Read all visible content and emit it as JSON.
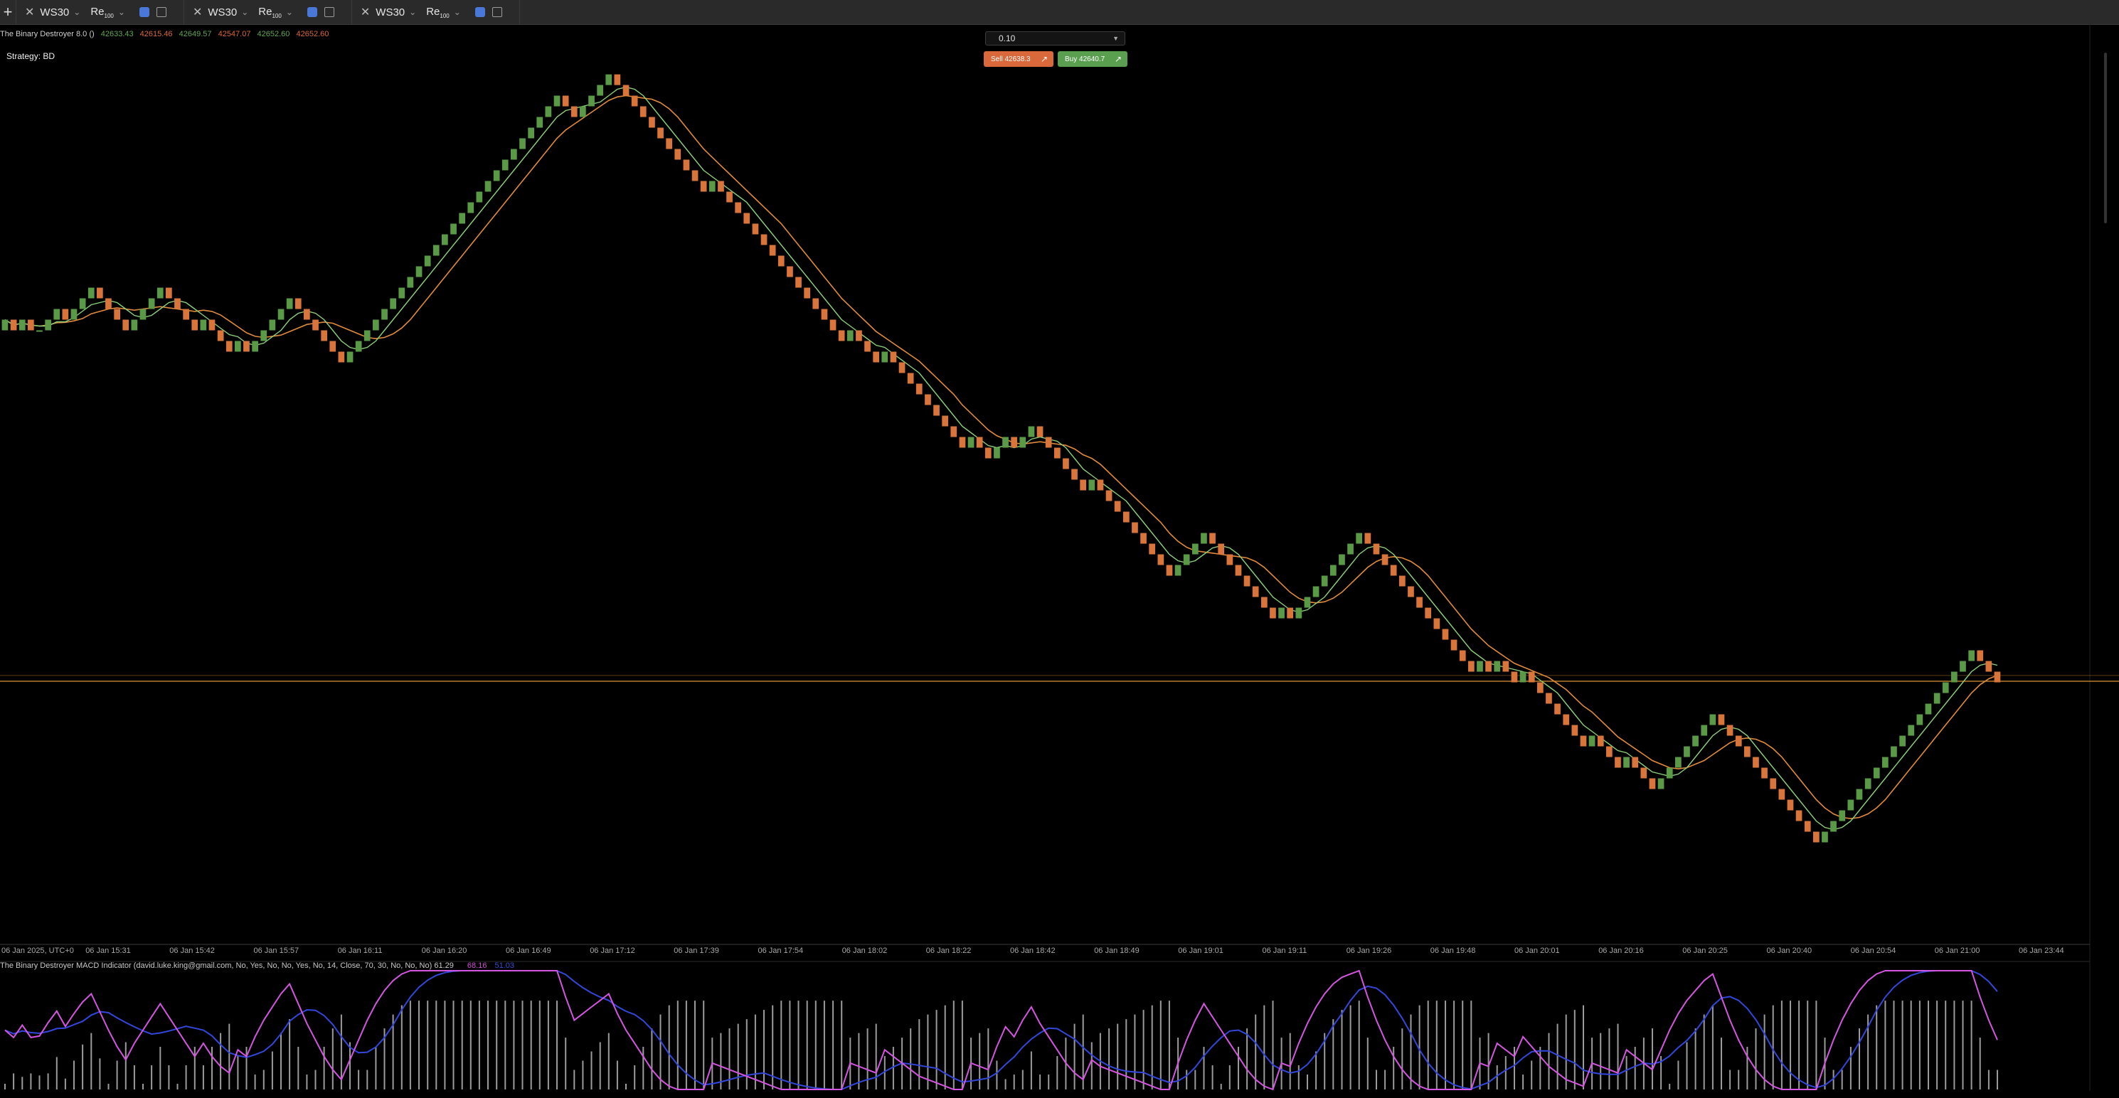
{
  "tabs": [
    {
      "symbol": "WS30",
      "type": "Re",
      "type_sub": "100"
    },
    {
      "symbol": "WS30",
      "type": "Re",
      "type_sub": "100"
    },
    {
      "symbol": "WS30",
      "type": "Re",
      "type_sub": "100"
    }
  ],
  "indicator_header": {
    "name": "The Binary Destroyer 8.0 ()",
    "values": [
      "42633.43",
      "42615.46",
      "42649.57",
      "42547.07",
      "42652.60",
      "42652.60"
    ],
    "value_colors": [
      "#5fa84f",
      "#d9683a",
      "#5fa84f",
      "#d9683a",
      "#5fa84f",
      "#d9683a"
    ]
  },
  "strategy_label": "Strategy: BD",
  "trade_panel": {
    "lot_value": "0.10",
    "sell_label": "Sell 42638.3",
    "buy_label": "Buy 42640.7"
  },
  "macd_header": {
    "text": "The Binary Destroyer MACD Indicator (david.luke.king@gmail.com, No, Yes, No, No, Yes, No, 14, Close, 70, 30, No, No, No)  61.29",
    "v1": "68.16",
    "v2": "51.03"
  },
  "colors": {
    "bull": "#5a9a47",
    "bear": "#d9743a",
    "fast_ma": "#8bd07a",
    "slow_ma": "#e08a3c",
    "macd": "#d455e0",
    "signal": "#3347dc",
    "hist": "#cfcfcf",
    "hline": "#c9872f"
  },
  "chart_data": {
    "type": "line",
    "renko_brick_close_values": [
      42698,
      42679,
      42698,
      42679,
      42679,
      42698,
      42717,
      42698,
      42717,
      42736,
      42755,
      42736,
      42717,
      42698,
      42679,
      42698,
      42717,
      42736,
      42755,
      42736,
      42717,
      42698,
      42679,
      42698,
      42679,
      42660,
      42641,
      42660,
      42641,
      42660,
      42679,
      42698,
      42717,
      42736,
      42717,
      42698,
      42679,
      42660,
      42641,
      42622,
      42641,
      42660,
      42679,
      42698,
      42717,
      42736,
      42755,
      42774,
      42793,
      42812,
      42831,
      42850,
      42869,
      42888,
      42907,
      42926,
      42945,
      42964,
      42983,
      43002,
      43021,
      43040,
      43059,
      43078,
      43097,
      43078,
      43059,
      43078,
      43097,
      43116,
      43135,
      43116,
      43097,
      43078,
      43059,
      43040,
      43021,
      43002,
      42983,
      42964,
      42945,
      42926,
      42945,
      42926,
      42907,
      42888,
      42869,
      42850,
      42831,
      42812,
      42793,
      42774,
      42755,
      42736,
      42717,
      42698,
      42679,
      42660,
      42679,
      42660,
      42641,
      42622,
      42641,
      42622,
      42603,
      42584,
      42565,
      42546,
      42527,
      42508,
      42489,
      42470,
      42489,
      42470,
      42451,
      42470,
      42489,
      42470,
      42489,
      42508,
      42489,
      42470,
      42451,
      42432,
      42413,
      42394,
      42413,
      42394,
      42375,
      42356,
      42337,
      42318,
      42299,
      42280,
      42261,
      42242,
      42261,
      42280,
      42299,
      42318,
      42299,
      42280,
      42261,
      42242,
      42223,
      42204,
      42185,
      42166,
      42185,
      42166,
      42185,
      42204,
      42223,
      42242,
      42261,
      42280,
      42299,
      42318,
      42299,
      42280,
      42261,
      42242,
      42223,
      42204,
      42185,
      42166,
      42147,
      42128,
      42109,
      42090,
      42071,
      42090,
      42071,
      42090,
      42071,
      42052,
      42071,
      42052,
      42033,
      42014,
      41995,
      41976,
      41957,
      41938,
      41957,
      41938,
      41919,
      41900,
      41919,
      41900,
      41881,
      41862,
      41881,
      41900,
      41919,
      41938,
      41957,
      41976,
      41995,
      41976,
      41957,
      41938,
      41919,
      41900,
      41881,
      41862,
      41843,
      41824,
      41805,
      41786,
      41767,
      41786,
      41805,
      41824,
      41843,
      41862,
      41881,
      41900,
      41919,
      41938,
      41957,
      41976,
      41995,
      42014,
      42033,
      42052,
      42071,
      42090,
      42109,
      42090,
      42071,
      42052
    ],
    "x_tick_labels": [
      "06 Jan 2025, UTC+0",
      "06 Jan 15:31",
      "06 Jan 15:42",
      "06 Jan 15:57",
      "06 Jan 16:11",
      "06 Jan 16:20",
      "06 Jan 16:49",
      "06 Jan 17:12",
      "06 Jan 17:39",
      "06 Jan 17:54",
      "06 Jan 18:02",
      "06 Jan 18:22",
      "06 Jan 18:42",
      "06 Jan 18:49",
      "06 Jan 19:01",
      "06 Jan 19:11",
      "06 Jan 19:26",
      "06 Jan 19:48",
      "06 Jan 20:01",
      "06 Jan 20:16",
      "06 Jan 20:25",
      "06 Jan 20:40",
      "06 Jan 20:54",
      "06 Jan 21:00",
      "06 Jan 23:44"
    ],
    "horizontal_line_value": 42054,
    "grid": false
  }
}
